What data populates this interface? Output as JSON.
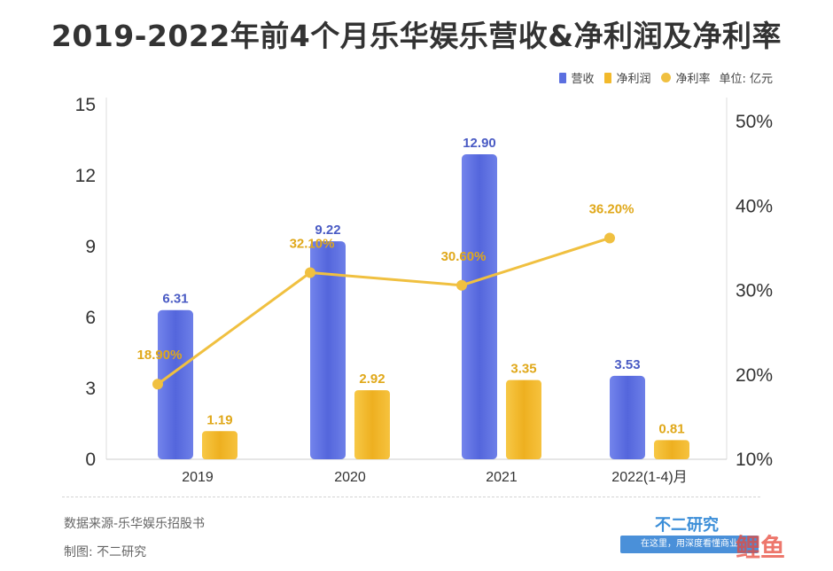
{
  "title": "2019-2022年前4个月乐华娱乐营收&净利润及净利率",
  "legend": {
    "revenue": "营收",
    "net_profit": "净利润",
    "net_margin": "净利率",
    "unit": "单位: 亿元"
  },
  "footer": {
    "source": "数据来源-乐华娱乐招股书",
    "maker": "制图: 不二研究",
    "brand": "不二研究",
    "slogan": "在这里，用深度看懂商业",
    "logo": "鲤鱼"
  },
  "colors": {
    "revenue": "#5b6fe0",
    "net_profit": "#f2b92b",
    "net_margin": "#f0c040",
    "revenue_label": "#4a5bc4",
    "profit_label": "#e0a81a"
  },
  "chart_data": {
    "type": "bar",
    "categories": [
      "2019",
      "2020",
      "2021",
      "2022(1-4)月"
    ],
    "series": [
      {
        "name": "营收",
        "type": "bar",
        "axis": "left",
        "values": [
          6.31,
          9.22,
          12.9,
          3.53
        ],
        "labels": [
          "6.31",
          "9.22",
          "12.90",
          "3.53"
        ]
      },
      {
        "name": "净利润",
        "type": "bar",
        "axis": "left",
        "values": [
          1.19,
          2.92,
          3.35,
          0.81
        ],
        "labels": [
          "1.19",
          "2.92",
          "3.35",
          "0.81"
        ]
      },
      {
        "name": "净利率",
        "type": "line",
        "axis": "right",
        "values": [
          18.9,
          32.1,
          30.6,
          36.2
        ],
        "labels": [
          "18.90%",
          "32.10%",
          "30.60%",
          "36.20%"
        ]
      }
    ],
    "y_left": {
      "min": 0,
      "max": 15,
      "ticks": [
        0,
        3,
        6,
        9,
        12,
        15
      ],
      "tick_labels": [
        "0",
        "3",
        "6",
        "9",
        "12",
        "15"
      ]
    },
    "y_right": {
      "min": 10,
      "max": 50,
      "ticks": [
        10,
        20,
        30,
        40,
        50
      ],
      "tick_labels": [
        "10%",
        "20%",
        "30%",
        "40%",
        "50%"
      ]
    },
    "grid": false,
    "legend_position": "top-right"
  }
}
